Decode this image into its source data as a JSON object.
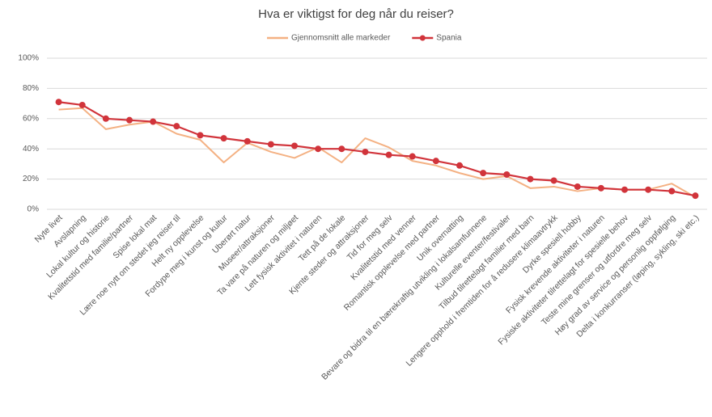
{
  "chart_data": {
    "type": "line",
    "title": "Hva er viktigst for deg når du reiser?",
    "categories": [
      "Nyte livet",
      "Avslapning",
      "Lokal kultur og historie",
      "Kvalitetstid med familie/partner",
      "Spise lokal mat",
      "Lære noe nytt om stedet jeg reiser til",
      "Helt ny opplevelse",
      "Fordype meg i kunst og kultur",
      "Uberørt natur",
      "Museer/attraksjoner",
      "Ta vare på naturen og miljøet",
      "Lett fysisk aktivitet i naturen",
      "Tett på de lokale",
      "Kjente steder og attraksjoner",
      "Tid for meg selv",
      "Kvalitetstid med venner",
      "Romantisk opplevelse med partner",
      "Unik overnatting",
      "Bevare og bidra til en bærekraftig utvikling i lokalsamfunnene",
      "Kulturelle eventer/festivaler",
      "Tilbud tilrettelagt familier med barn",
      "Lengere opphold i fremtiden for å redusere klimaavtrykk",
      "Dyrke spesiell hobby",
      "Fysisk krevende aktiviteter i naturen",
      "Fysiske aktiviteter tilrettelagt for spesielle behov",
      "Teste mine grenser og utfordre meg selv",
      "Høy grad av service og personlig oppfølging",
      "Delta i konkurranser (løping, sykling, ski etc.)"
    ],
    "series": [
      {
        "name": "Gjennomsnitt alle markeder",
        "color": "#f4b183",
        "marker": false,
        "values": [
          66,
          67,
          53,
          56,
          58,
          50,
          46,
          31,
          44,
          38,
          34,
          41,
          31,
          47,
          41,
          32,
          29,
          24,
          20,
          22,
          14,
          15,
          12,
          14,
          13,
          13,
          17,
          8
        ]
      },
      {
        "name": "Spania",
        "color": "#d1343b",
        "marker": true,
        "values": [
          71,
          69,
          60,
          59,
          58,
          55,
          49,
          47,
          45,
          43,
          42,
          40,
          40,
          38,
          36,
          35,
          32,
          29,
          24,
          23,
          20,
          19,
          15,
          14,
          13,
          13,
          12,
          9
        ]
      }
    ],
    "ylim": [
      0,
      100
    ],
    "yticks": [
      {
        "value": 0,
        "label": "0%"
      },
      {
        "value": 20,
        "label": "20%"
      },
      {
        "value": 40,
        "label": "40%"
      },
      {
        "value": 60,
        "label": "60%"
      },
      {
        "value": 80,
        "label": "80%"
      },
      {
        "value": 100,
        "label": "100%"
      }
    ],
    "grid": true,
    "legend": "top"
  }
}
